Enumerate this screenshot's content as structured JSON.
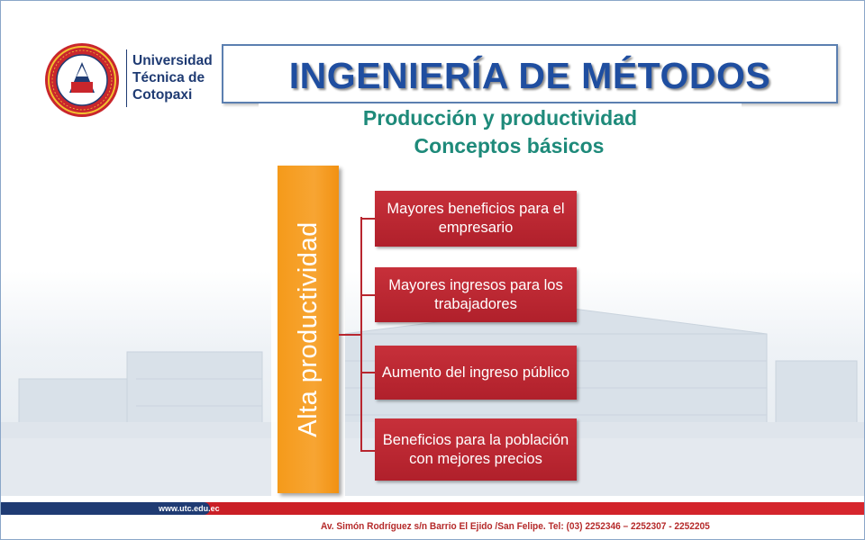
{
  "university": {
    "name_lines": [
      "Universidad",
      "Técnica de",
      "Cotopaxi"
    ],
    "seal_top_text": "UNIVERSIDAD TÉCNICA DE COTOPAXI",
    "seal_bottom_text": "LATACUNGA - ECUADOR",
    "seal_center_text": "UTC",
    "seal_date": "24 - 01 - 1995"
  },
  "title": "INGENIERÍA DE MÉTODOS",
  "subtitles": [
    "Producción y productividad",
    "Conceptos básicos"
  ],
  "diagram": {
    "main_label": "Alta productividad",
    "items": [
      "Mayores beneficios para el empresario",
      "Mayores ingresos para los trabajadores",
      "Aumento del ingreso público",
      "Beneficios para la población con mejores precios"
    ]
  },
  "footer": {
    "url": "www.utc.edu.ec",
    "address": "Av. Simón Rodríguez s/n Barrio El Ejido /San Felipe.   Tel: (03) 2252346 – 2252307 - 2252205"
  },
  "colors": {
    "title_blue": "#1f4ea0",
    "subtitle_teal": "#1e8a7a",
    "orange": "#f59a1a",
    "red_box": "#b8262f",
    "footer_red": "#c91e25",
    "footer_blue": "#1f3b73"
  }
}
